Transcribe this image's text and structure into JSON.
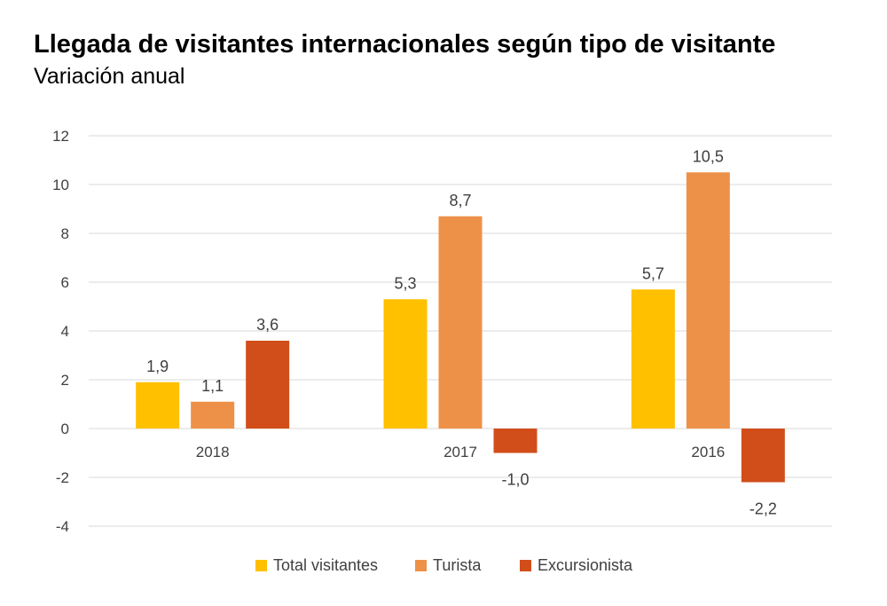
{
  "title": "Llegada de visitantes internacionales según tipo de visitante",
  "subtitle": "Variación anual",
  "chart_data": {
    "type": "bar",
    "title": "Llegada de visitantes internacionales según tipo de visitante",
    "subtitle": "Variación anual",
    "categories": [
      "2018",
      "2017",
      "2016"
    ],
    "series": [
      {
        "name": "Total visitantes",
        "color": "#FFC000",
        "values": [
          1.9,
          5.3,
          5.7
        ],
        "labels": [
          "1,9",
          "5,3",
          "5,7"
        ]
      },
      {
        "name": "Turista",
        "color": "#EE9148",
        "values": [
          1.1,
          8.7,
          10.5
        ],
        "labels": [
          "1,1",
          "8,7",
          "10,5"
        ]
      },
      {
        "name": "Excursionista",
        "color": "#D14E1A",
        "values": [
          3.6,
          -1.0,
          -2.2
        ],
        "labels": [
          "3,6",
          "-1,0",
          "-2,2"
        ]
      }
    ],
    "ylim": [
      -4,
      12
    ],
    "yticks": [
      "12",
      "10",
      "8",
      "6",
      "4",
      "2",
      "0",
      "-2",
      "-4"
    ],
    "ytick_values": [
      12,
      10,
      8,
      6,
      4,
      2,
      0,
      -2,
      -4
    ],
    "grid": true,
    "legend_position": "bottom"
  }
}
